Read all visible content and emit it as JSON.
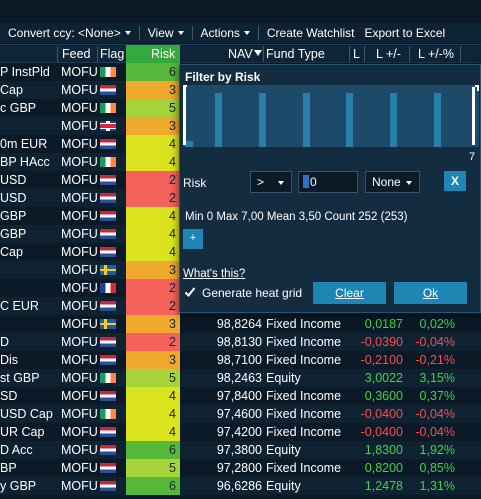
{
  "toolbar": {
    "convert_label": "Convert ccy: <None>",
    "view_label": "View",
    "actions_label": "Actions",
    "create_watchlist_label": "Create Watchlist",
    "export_label": "Export to Excel"
  },
  "columns": {
    "feed": "Feed",
    "flag": "Flag",
    "risk": "Risk",
    "nav": "NAV",
    "fund_type": "Fund Type",
    "l": "L",
    "l_change": "L +/-",
    "l_change_pct": "L +/-%"
  },
  "colors": {
    "risk_green": "#35a93d",
    "risk_light_green": "#a5d33a",
    "risk_yellow": "#dbe31f",
    "risk_orange": "#efa92c",
    "risk_red": "#f5625c",
    "positive": "#3fd34a",
    "negative": "#ff4a4a",
    "button": "#1e85b5"
  },
  "rows": [
    {
      "name": "P InstPld",
      "feed": "MOFU",
      "flag": "ie",
      "risk": "6",
      "risk_color": "#56b83a",
      "nav": "",
      "type": "",
      "l1": "",
      "l2": "",
      "sign": ""
    },
    {
      "name": "Cap",
      "feed": "MOFU",
      "flag": "nl",
      "risk": "3",
      "risk_color": "#efa92c",
      "nav": "",
      "type": "",
      "l1": "",
      "l2": "",
      "sign": ""
    },
    {
      "name": "c GBP",
      "feed": "MOFU",
      "flag": "ie",
      "risk": "5",
      "risk_color": "#a5d33a",
      "nav": "",
      "type": "",
      "l1": "",
      "l2": "",
      "sign": ""
    },
    {
      "name": "",
      "feed": "MOFU",
      "flag": "gb",
      "risk": "3",
      "risk_color": "#efa92c",
      "nav": "",
      "type": "",
      "l1": "",
      "l2": "",
      "sign": ""
    },
    {
      "name": "0m EUR",
      "feed": "MOFU",
      "flag": "nl",
      "risk": "4",
      "risk_color": "#dbe31f",
      "nav": "",
      "type": "",
      "l1": "",
      "l2": "",
      "sign": ""
    },
    {
      "name": "BP HAcc",
      "feed": "MOFU",
      "flag": "ie",
      "risk": "4",
      "risk_color": "#dbe31f",
      "nav": "",
      "type": "",
      "l1": "",
      "l2": "",
      "sign": ""
    },
    {
      "name": "USD",
      "feed": "MOFU",
      "flag": "nl",
      "risk": "2",
      "risk_color": "#f5625c",
      "nav": "",
      "type": "",
      "l1": "",
      "l2": "",
      "sign": ""
    },
    {
      "name": "USD",
      "feed": "MOFU",
      "flag": "nl",
      "risk": "2",
      "risk_color": "#f5625c",
      "nav": "",
      "type": "",
      "l1": "",
      "l2": "",
      "sign": ""
    },
    {
      "name": "GBP",
      "feed": "MOFU",
      "flag": "nl",
      "risk": "4",
      "risk_color": "#dbe31f",
      "nav": "",
      "type": "",
      "l1": "",
      "l2": "",
      "sign": ""
    },
    {
      "name": "GBP",
      "feed": "MOFU",
      "flag": "nl",
      "risk": "4",
      "risk_color": "#dbe31f",
      "nav": "",
      "type": "",
      "l1": "",
      "l2": "",
      "sign": ""
    },
    {
      "name": "Cap",
      "feed": "MOFU",
      "flag": "nl",
      "risk": "4",
      "risk_color": "#dbe31f",
      "nav": "",
      "type": "",
      "l1": "",
      "l2": "",
      "sign": ""
    },
    {
      "name": "",
      "feed": "MOFU",
      "flag": "se",
      "risk": "3",
      "risk_color": "#efa92c",
      "nav": "",
      "type": "",
      "l1": "",
      "l2": "",
      "sign": ""
    },
    {
      "name": "",
      "feed": "MOFU",
      "flag": "fr",
      "risk": "2",
      "risk_color": "#f5625c",
      "nav": "",
      "type": "",
      "l1": "",
      "l2": "",
      "sign": ""
    },
    {
      "name": "C EUR",
      "feed": "MOFU",
      "flag": "nl",
      "risk": "2",
      "risk_color": "#f5625c",
      "nav": "",
      "type": "",
      "l1": "",
      "l2": "",
      "sign": ""
    },
    {
      "name": "",
      "feed": "MOFU",
      "flag": "se",
      "risk": "3",
      "risk_color": "#efa92c",
      "nav": "98,8264",
      "type": "Fixed Income",
      "l1": "0,0187",
      "l2": "0,02%",
      "sign": "pos"
    },
    {
      "name": "D",
      "feed": "MOFU",
      "flag": "nl",
      "risk": "2",
      "risk_color": "#f5625c",
      "nav": "98,8130",
      "type": "Fixed Income",
      "l1": "-0,0390",
      "l2": "-0,04%",
      "sign": "neg"
    },
    {
      "name": "Dis",
      "feed": "MOFU",
      "flag": "nl",
      "risk": "3",
      "risk_color": "#efa92c",
      "nav": "98,7100",
      "type": "Fixed Income",
      "l1": "-0,2100",
      "l2": "-0,21%",
      "sign": "neg"
    },
    {
      "name": "st GBP",
      "feed": "MOFU",
      "flag": "ie",
      "risk": "5",
      "risk_color": "#a5d33a",
      "nav": "98,2463",
      "type": "Equity",
      "l1": "3,0022",
      "l2": "3,15%",
      "sign": "pos"
    },
    {
      "name": "SD",
      "feed": "MOFU",
      "flag": "nl",
      "risk": "4",
      "risk_color": "#dbe31f",
      "nav": "97,8400",
      "type": "Fixed Income",
      "l1": "0,3600",
      "l2": "0,37%",
      "sign": "pos"
    },
    {
      "name": "USD Cap",
      "feed": "MOFU",
      "flag": "ie",
      "risk": "4",
      "risk_color": "#dbe31f",
      "nav": "97,4600",
      "type": "Fixed Income",
      "l1": "-0,0400",
      "l2": "-0,04%",
      "sign": "neg"
    },
    {
      "name": "UR Cap",
      "feed": "MOFU",
      "flag": "nl",
      "risk": "4",
      "risk_color": "#dbe31f",
      "nav": "97,4200",
      "type": "Fixed Income",
      "l1": "-0,0400",
      "l2": "-0,04%",
      "sign": "neg"
    },
    {
      "name": "D Acc",
      "feed": "MOFU",
      "flag": "nl",
      "risk": "6",
      "risk_color": "#56b83a",
      "nav": "97,3800",
      "type": "Equity",
      "l1": "1,8300",
      "l2": "1,92%",
      "sign": "pos"
    },
    {
      "name": "BP",
      "feed": "MOFU",
      "flag": "nl",
      "risk": "5",
      "risk_color": "#a5d33a",
      "nav": "97,2800",
      "type": "Fixed Income",
      "l1": "0,8200",
      "l2": "0,85%",
      "sign": "pos"
    },
    {
      "name": "y GBP",
      "feed": "MOFU",
      "flag": "nl",
      "risk": "6",
      "risk_color": "#56b83a",
      "nav": "96,6286",
      "type": "Equity",
      "l1": "1,2478",
      "l2": "1,31%",
      "sign": "pos"
    }
  ],
  "filter": {
    "title": "Filter by Risk",
    "histogram_max_label": "7",
    "histogram_counts": [
      4,
      0,
      0,
      0,
      0,
      0,
      0
    ],
    "field_label": "Risk",
    "operator": ">",
    "value": "0",
    "second_operator": "None",
    "clear_x_label": "X",
    "stats_label": "Min  0  Max  7,00  Mean  3,50  Count  252 (253)",
    "add_label": "+",
    "whats_this_label": "What's this?",
    "heat_grid_label": "Generate heat grid",
    "heat_grid_checked": true,
    "clear_label": "Clear",
    "ok_label": "Ok"
  }
}
